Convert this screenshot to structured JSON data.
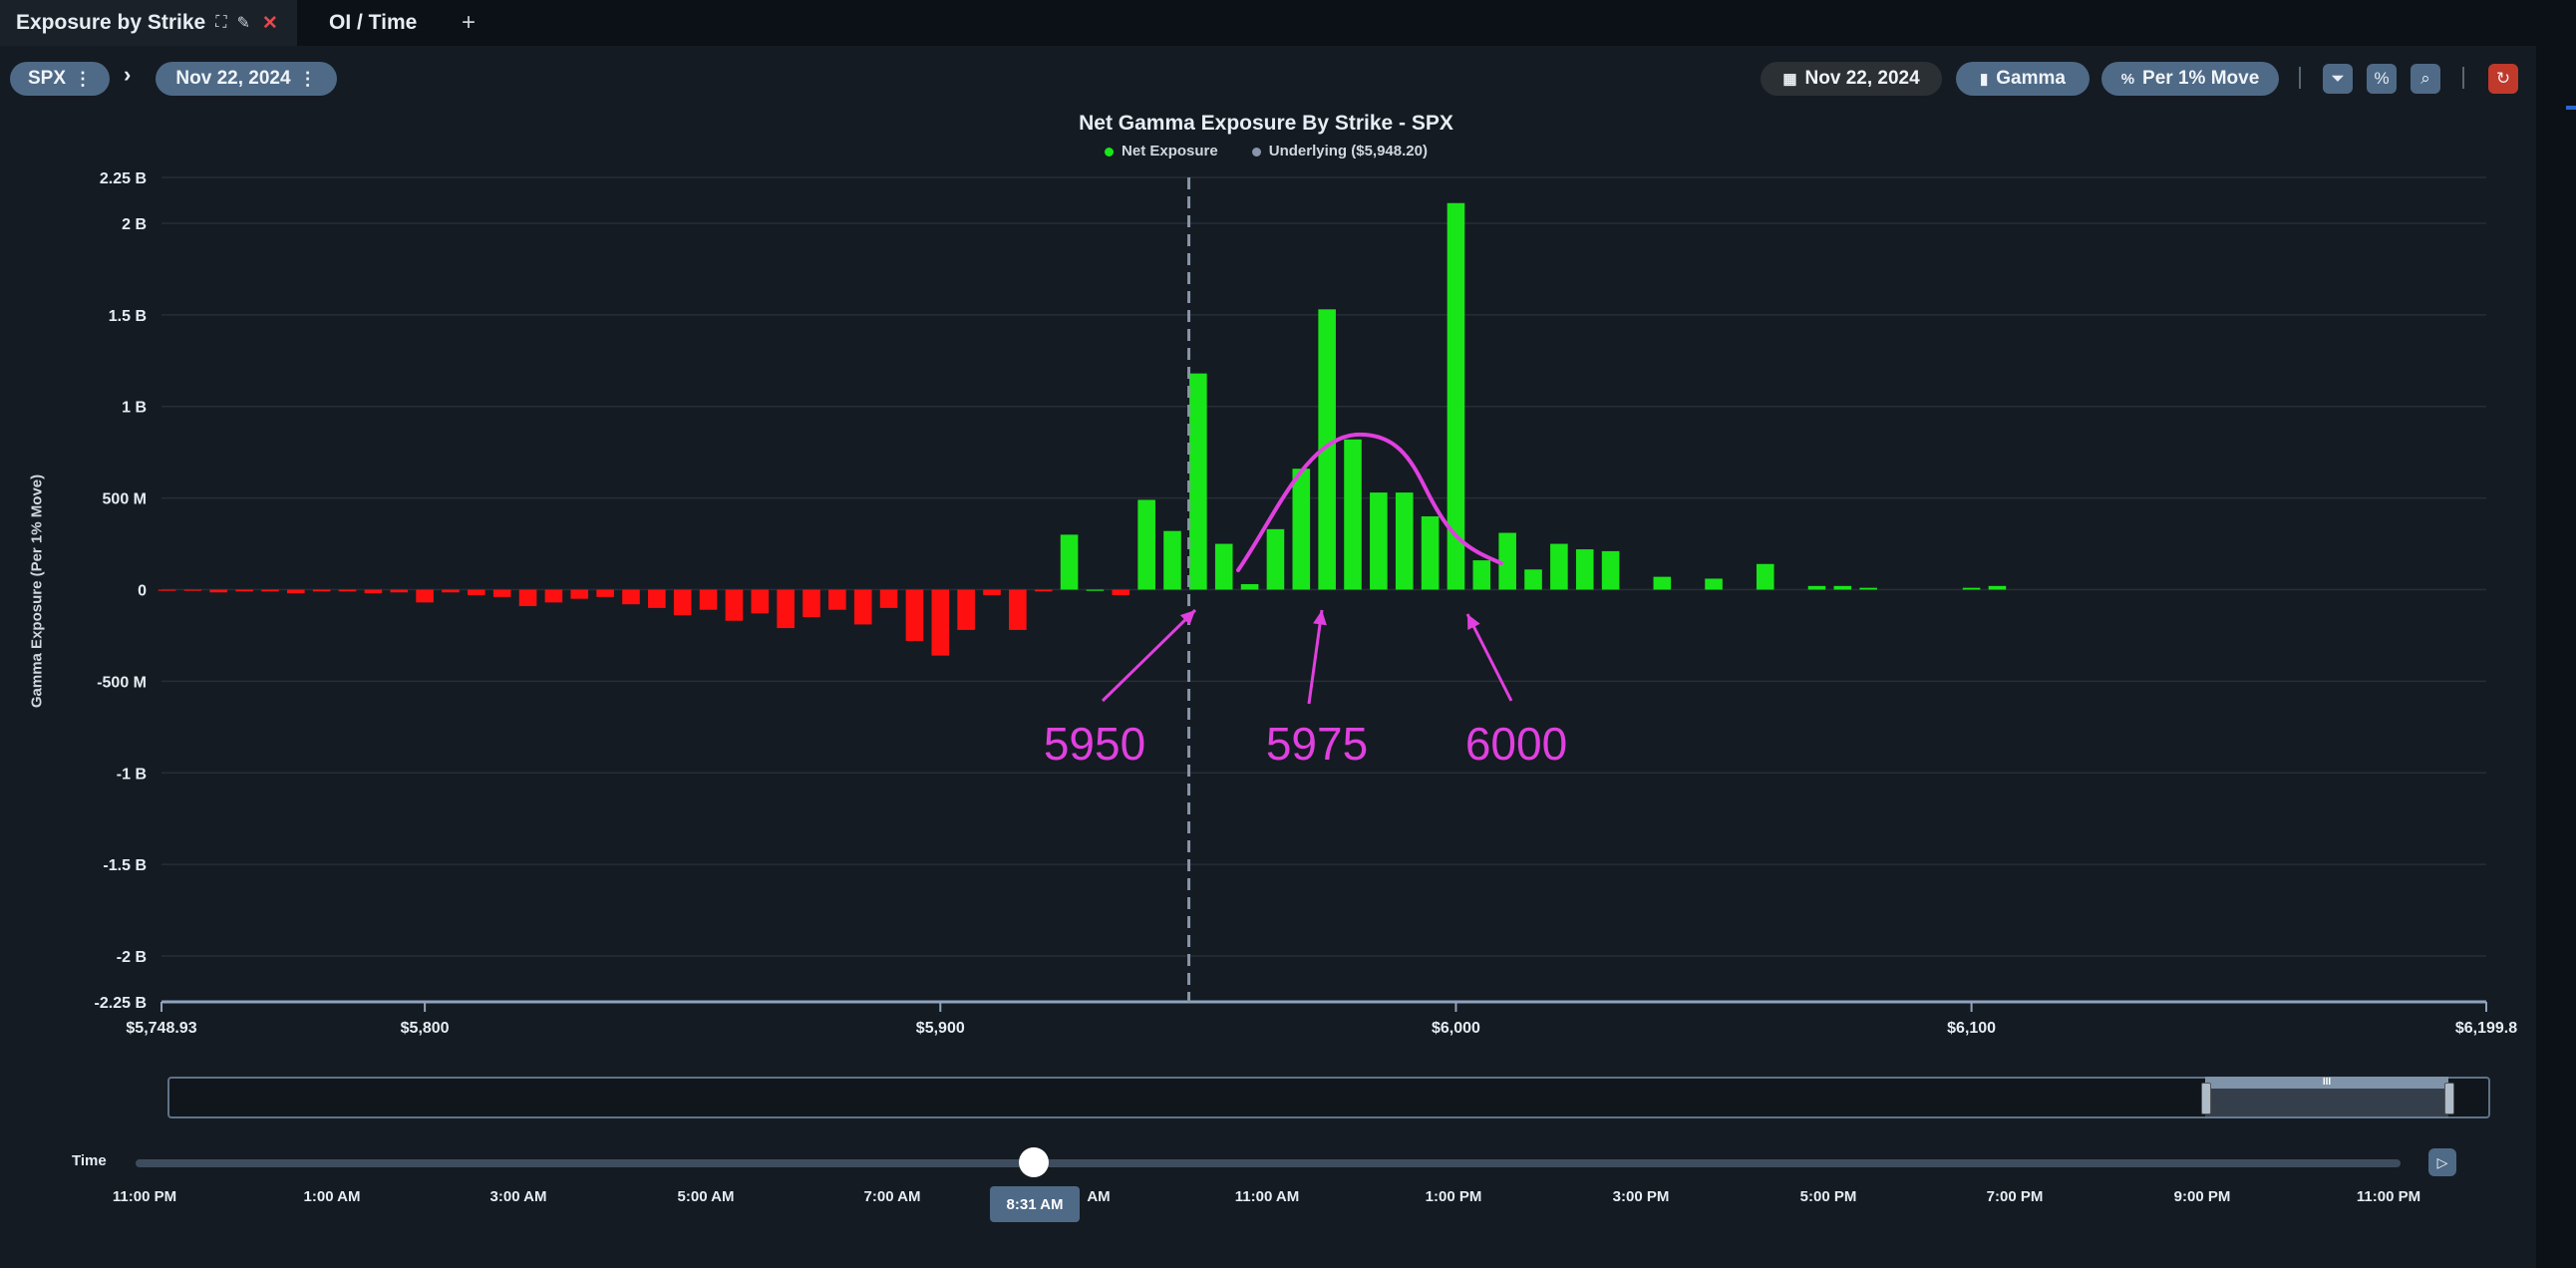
{
  "tabs": [
    {
      "label": "Exposure by Strike",
      "active": true
    },
    {
      "label": "OI / Time",
      "active": false
    }
  ],
  "tab_icons": {
    "expand": "expand-icon",
    "edit": "pencil-icon",
    "close": "close-icon",
    "add": "plus-icon"
  },
  "toolbar": {
    "symbol": "SPX",
    "date_left": "Nov 22, 2024",
    "date_right": "Nov 22, 2024",
    "greek": "Gamma",
    "mode": "Per 1% Move",
    "icons": [
      "filter-icon",
      "percent-icon",
      "zoom-icon",
      "reset-icon"
    ]
  },
  "chart_data": {
    "type": "bar",
    "title": "Net Gamma Exposure By Strike - SPX",
    "ylabel": "Gamma Exposure (Per 1% Move)",
    "legend": [
      {
        "name": "Net Exposure",
        "color": "#19e619"
      },
      {
        "name": "Underlying ($5,948.20)",
        "color": "#8796a8"
      }
    ],
    "xlim": [
      5748.93,
      6199.85
    ],
    "ylim": [
      -2250,
      2250
    ],
    "y_unit": "M",
    "y_ticks": [
      {
        "v": 2250,
        "label": "2.25 B"
      },
      {
        "v": 2000,
        "label": "2 B"
      },
      {
        "v": 1500,
        "label": "1.5 B"
      },
      {
        "v": 1000,
        "label": "1 B"
      },
      {
        "v": 500,
        "label": "500 M"
      },
      {
        "v": 0,
        "label": "0"
      },
      {
        "v": -500,
        "label": "-500 M"
      },
      {
        "v": -1000,
        "label": "-1 B"
      },
      {
        "v": -1500,
        "label": "-1.5 B"
      },
      {
        "v": -2000,
        "label": "-2 B"
      },
      {
        "v": -2250,
        "label": "-2.25 B"
      }
    ],
    "x_ticks": [
      {
        "v": 5748.93,
        "label": "$5,748.93"
      },
      {
        "v": 5800,
        "label": "$5,800"
      },
      {
        "v": 5900,
        "label": "$5,900"
      },
      {
        "v": 6000,
        "label": "$6,000"
      },
      {
        "v": 6100,
        "label": "$6,100"
      },
      {
        "v": 6199.85,
        "label": "$6,199.8"
      }
    ],
    "underlying": 5948.2,
    "positive_color": "#19e619",
    "negative_color": "#ff1010",
    "grid": true,
    "x": [
      5750,
      5755,
      5760,
      5765,
      5770,
      5775,
      5780,
      5785,
      5790,
      5795,
      5800,
      5805,
      5810,
      5815,
      5820,
      5825,
      5830,
      5835,
      5840,
      5845,
      5850,
      5855,
      5860,
      5865,
      5870,
      5875,
      5880,
      5885,
      5890,
      5895,
      5900,
      5905,
      5910,
      5915,
      5920,
      5925,
      5930,
      5935,
      5940,
      5945,
      5950,
      5955,
      5960,
      5965,
      5970,
      5975,
      5980,
      5985,
      5990,
      5995,
      6000,
      6005,
      6010,
      6015,
      6020,
      6025,
      6030,
      6040,
      6050,
      6060,
      6070,
      6075,
      6080,
      6100,
      6105
    ],
    "values": [
      -5,
      -5,
      -15,
      -10,
      -10,
      -20,
      -10,
      -10,
      -20,
      -15,
      -70,
      -15,
      -30,
      -40,
      -90,
      -70,
      -50,
      -40,
      -80,
      -100,
      -140,
      -110,
      -170,
      -130,
      -210,
      -150,
      -110,
      -190,
      -100,
      -280,
      -360,
      -220,
      -30,
      -220,
      -10,
      300,
      0,
      -30,
      490,
      320,
      1180,
      250,
      30,
      330,
      660,
      1530,
      820,
      530,
      530,
      400,
      2110,
      160,
      310,
      110,
      250,
      220,
      210,
      70,
      60,
      140,
      20,
      20,
      10,
      10,
      20
    ]
  },
  "annotations": [
    {
      "label": "5950",
      "color": "#e040e0"
    },
    {
      "label": "5975",
      "color": "#e040e0"
    },
    {
      "label": "6000",
      "color": "#e040e0"
    }
  ],
  "time_slider": {
    "label": "Time",
    "ticks": [
      "11:00 PM",
      "1:00 AM",
      "3:00 AM",
      "5:00 AM",
      "7:00 AM",
      "AM",
      "11:00 AM",
      "1:00 PM",
      "3:00 PM",
      "5:00 PM",
      "7:00 PM",
      "9:00 PM",
      "11:00 PM"
    ],
    "current": "8:31 AM",
    "position": 0.4,
    "play_icon": "play-icon"
  },
  "navigator": {
    "handle_label": "III",
    "selection_start": 0.8,
    "selection_end": 0.9
  }
}
